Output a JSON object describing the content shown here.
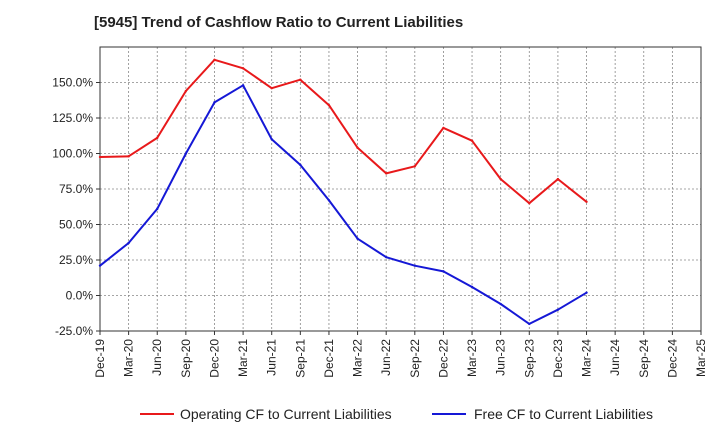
{
  "chart_data": {
    "type": "line",
    "title": "[5945]  Trend of Cashflow Ratio to Current Liabilities",
    "xlabel": "",
    "ylabel": "",
    "ylim": [
      -25,
      175
    ],
    "y_ticks": [
      -25,
      0,
      25,
      50,
      75,
      100,
      125,
      150
    ],
    "y_tick_labels": [
      "-25.0%",
      "0.0%",
      "25.0%",
      "50.0%",
      "75.0%",
      "100.0%",
      "125.0%",
      "150.0%"
    ],
    "x_tick_labels": [
      "Dec-19",
      "Mar-20",
      "Jun-20",
      "Sep-20",
      "Dec-20",
      "Mar-21",
      "Jun-21",
      "Sep-21",
      "Dec-21",
      "Mar-22",
      "Jun-22",
      "Sep-22",
      "Dec-22",
      "Mar-23",
      "Jun-23",
      "Sep-23",
      "Dec-23",
      "Mar-24",
      "Jun-24",
      "Sep-24",
      "Dec-24",
      "Mar-25"
    ],
    "grid": true,
    "legend_position": "bottom",
    "series": [
      {
        "name": "Operating CF to Current Liabilities",
        "color": "#e8191b",
        "values": [
          97.5,
          98,
          111,
          144,
          166,
          160,
          146,
          152,
          134,
          104,
          86,
          91,
          118,
          109,
          82,
          65,
          82,
          66
        ]
      },
      {
        "name": "Free CF to Current Liabilities",
        "color": "#1518d6",
        "values": [
          21,
          37,
          61,
          100,
          136,
          148,
          110,
          92,
          67,
          40,
          27,
          21,
          17,
          6,
          -6,
          -20,
          -10,
          2
        ]
      }
    ]
  }
}
